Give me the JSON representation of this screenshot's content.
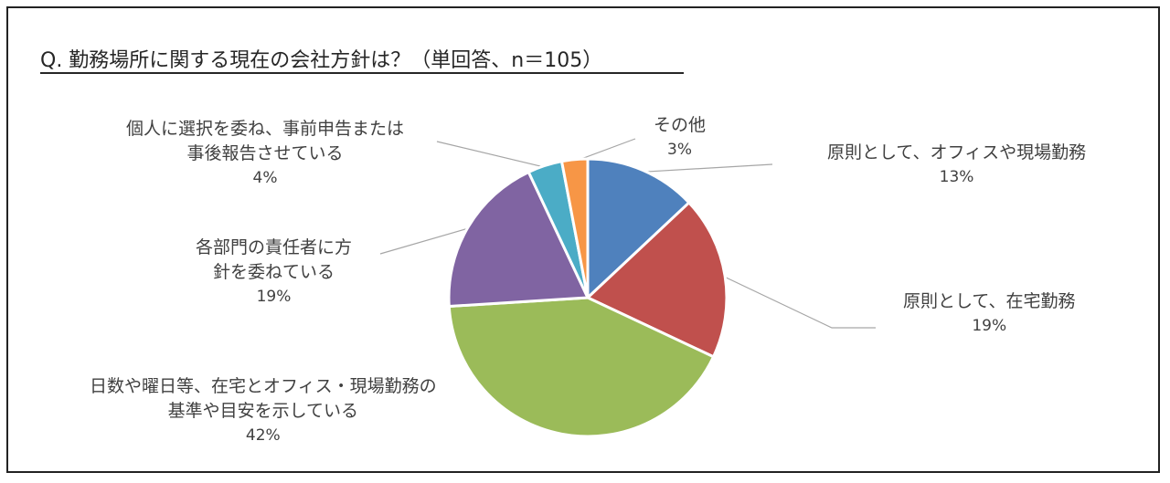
{
  "chart_data": {
    "type": "pie",
    "title": "Q. 勤務場所に関する現在の会社方針は？（単回答、n＝105）",
    "slices": [
      {
        "label_lines": [
          "原則として、オフィスや現場勤務"
        ],
        "value": 13,
        "value_label": "13%",
        "color": "#4F81BD"
      },
      {
        "label_lines": [
          "原則として、在宅勤務"
        ],
        "value": 19,
        "value_label": "19%",
        "color": "#C0504D"
      },
      {
        "label_lines": [
          "日数や曜日等、在宅とオフィス・現場勤務の",
          "基準や目安を示している"
        ],
        "value": 42,
        "value_label": "42%",
        "color": "#9BBB59"
      },
      {
        "label_lines": [
          "各部門の責任者に方",
          "針を委ねている"
        ],
        "value": 19,
        "value_label": "19%",
        "color": "#8064A2"
      },
      {
        "label_lines": [
          "個人に選択を委ね、事前申告または",
          "事後報告させている"
        ],
        "value": 4,
        "value_label": "4%",
        "color": "#4BACC6"
      },
      {
        "label_lines": [
          "その他"
        ],
        "value": 3,
        "value_label": "3%",
        "color": "#F79646"
      }
    ],
    "legend": "none",
    "start_angle": "12 o'clock, clockwise"
  }
}
